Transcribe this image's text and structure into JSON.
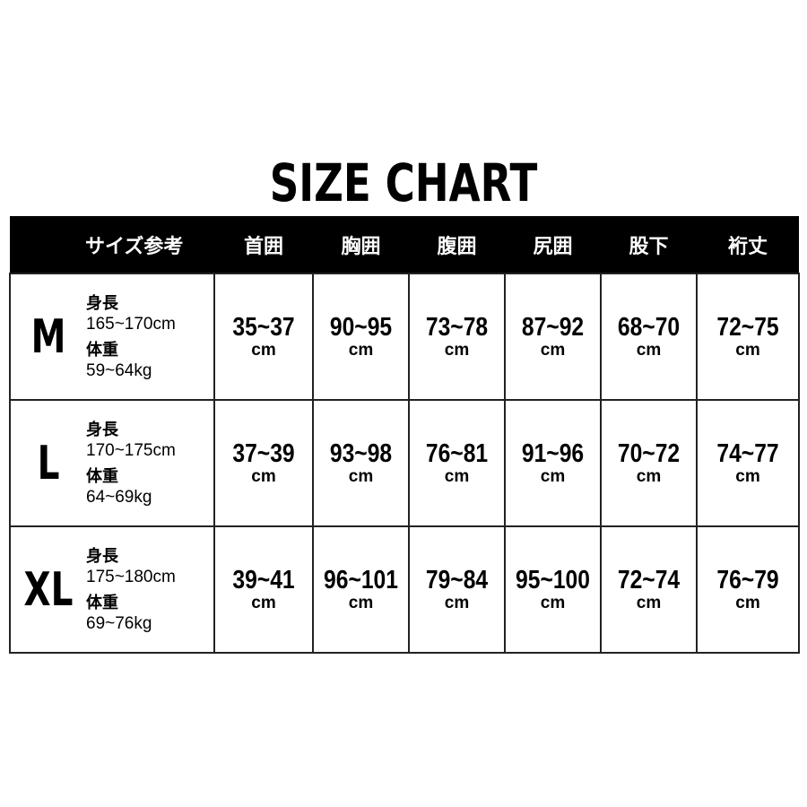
{
  "title": "SIZE CHART",
  "headers": [
    "サイズ参考",
    "首囲",
    "胸囲",
    "腹囲",
    "尻囲",
    "股下",
    "裄丈"
  ],
  "height_label": "身長",
  "weight_label": "体重",
  "unit": "cm",
  "rows": [
    {
      "size": "M",
      "height": "165~170cm",
      "weight": "59~64kg",
      "values": [
        "35~37",
        "90~95",
        "73~78",
        "87~92",
        "68~70",
        "72~75"
      ]
    },
    {
      "size": "L",
      "height": "170~175cm",
      "weight": "64~69kg",
      "values": [
        "37~39",
        "93~98",
        "76~81",
        "91~96",
        "70~72",
        "74~77"
      ]
    },
    {
      "size": "XL",
      "height": "175~180cm",
      "weight": "69~76kg",
      "values": [
        "39~41",
        "96~101",
        "79~84",
        "95~100",
        "72~74",
        "76~79"
      ]
    }
  ]
}
